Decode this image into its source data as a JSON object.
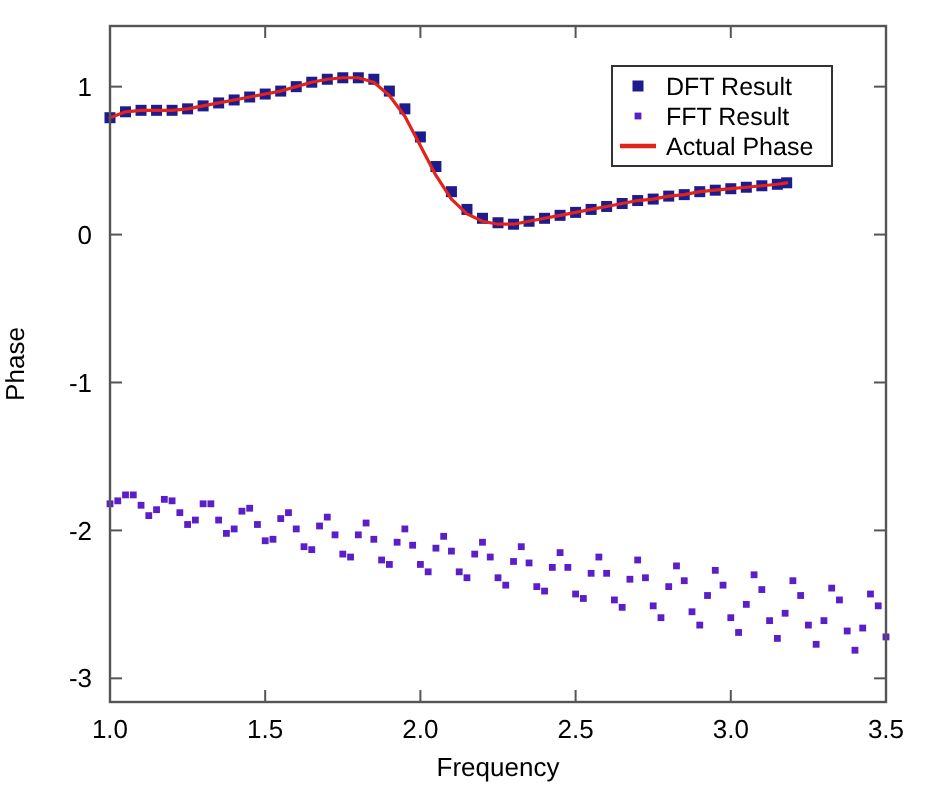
{
  "chart_data": {
    "type": "scatter",
    "xlabel": "Frequency",
    "ylabel": "Phase",
    "xlim": [
      1.0,
      3.5
    ],
    "ylim": [
      -3.16,
      1.41
    ],
    "xticks": [
      {
        "value": 1.0,
        "label": "1.0"
      },
      {
        "value": 1.5,
        "label": "1.5"
      },
      {
        "value": 2.0,
        "label": "2.0"
      },
      {
        "value": 2.5,
        "label": "2.5"
      },
      {
        "value": 3.0,
        "label": "3.0"
      },
      {
        "value": 3.5,
        "label": "3.5"
      }
    ],
    "yticks": [
      -3,
      -2,
      -1,
      0,
      1
    ],
    "grid": false,
    "legend": "top right",
    "marker": "square",
    "series": [
      {
        "name": "DFT Result",
        "color": "#1c1c8e",
        "x": [
          1.0,
          1.05,
          1.1,
          1.15,
          1.2,
          1.25,
          1.3,
          1.35,
          1.4,
          1.45,
          1.5,
          1.55,
          1.6,
          1.65,
          1.7,
          1.75,
          1.8,
          1.85,
          1.9,
          1.95,
          2.0,
          2.05,
          2.1,
          2.15,
          2.2,
          2.25,
          2.3,
          2.35,
          2.4,
          2.45,
          2.5,
          2.55,
          2.6,
          2.65,
          2.7,
          2.75,
          2.8,
          2.85,
          2.9,
          2.95,
          3.0,
          3.05,
          3.1,
          3.15,
          3.18
        ],
        "values": [
          0.79,
          0.83,
          0.84,
          0.84,
          0.84,
          0.85,
          0.87,
          0.89,
          0.91,
          0.93,
          0.95,
          0.97,
          1.0,
          1.03,
          1.05,
          1.06,
          1.06,
          1.05,
          0.97,
          0.85,
          0.66,
          0.46,
          0.29,
          0.17,
          0.11,
          0.08,
          0.07,
          0.09,
          0.11,
          0.13,
          0.15,
          0.17,
          0.19,
          0.21,
          0.23,
          0.24,
          0.26,
          0.27,
          0.29,
          0.3,
          0.31,
          0.32,
          0.33,
          0.34,
          0.35
        ]
      },
      {
        "name": "FFT Result",
        "color": "#5a1fc8",
        "x": [
          1.0,
          1.025,
          1.05,
          1.075,
          1.1,
          1.125,
          1.15,
          1.175,
          1.2,
          1.225,
          1.25,
          1.275,
          1.3,
          1.325,
          1.35,
          1.375,
          1.4,
          1.425,
          1.45,
          1.475,
          1.5,
          1.525,
          1.55,
          1.575,
          1.6,
          1.625,
          1.65,
          1.675,
          1.7,
          1.725,
          1.75,
          1.775,
          1.8,
          1.825,
          1.85,
          1.875,
          1.9,
          1.925,
          1.95,
          1.975,
          2.0,
          2.025,
          2.05,
          2.075,
          2.1,
          2.125,
          2.15,
          2.175,
          2.2,
          2.225,
          2.25,
          2.275,
          2.3,
          2.325,
          2.35,
          2.375,
          2.4,
          2.425,
          2.45,
          2.475,
          2.5,
          2.525,
          2.55,
          2.575,
          2.6,
          2.625,
          2.65,
          2.675,
          2.7,
          2.725,
          2.75,
          2.775,
          2.8,
          2.825,
          2.85,
          2.875,
          2.9,
          2.925,
          2.95,
          2.975,
          3.0,
          3.025,
          3.05,
          3.075,
          3.1,
          3.125,
          3.15,
          3.175,
          3.2,
          3.225,
          3.25,
          3.275,
          3.3,
          3.325,
          3.35,
          3.375,
          3.4,
          3.425,
          3.45,
          3.475,
          3.5
        ],
        "values": [
          -1.82,
          -1.8,
          -1.76,
          -1.76,
          -1.83,
          -1.9,
          -1.86,
          -1.79,
          -1.8,
          -1.88,
          -1.96,
          -1.93,
          -1.82,
          -1.82,
          -1.93,
          -2.02,
          -1.99,
          -1.87,
          -1.85,
          -1.96,
          -2.07,
          -2.06,
          -1.92,
          -1.88,
          -1.99,
          -2.11,
          -2.13,
          -1.97,
          -1.91,
          -2.03,
          -2.16,
          -2.18,
          -2.03,
          -1.95,
          -2.06,
          -2.2,
          -2.23,
          -2.08,
          -1.99,
          -2.1,
          -2.23,
          -2.28,
          -2.12,
          -2.04,
          -2.14,
          -2.28,
          -2.32,
          -2.16,
          -2.08,
          -2.18,
          -2.32,
          -2.37,
          -2.21,
          -2.11,
          -2.22,
          -2.38,
          -2.41,
          -2.25,
          -2.15,
          -2.25,
          -2.43,
          -2.46,
          -2.29,
          -2.18,
          -2.29,
          -2.47,
          -2.52,
          -2.33,
          -2.2,
          -2.32,
          -2.51,
          -2.59,
          -2.38,
          -2.24,
          -2.34,
          -2.55,
          -2.64,
          -2.44,
          -2.27,
          -2.37,
          -2.59,
          -2.69,
          -2.5,
          -2.3,
          -2.4,
          -2.61,
          -2.73,
          -2.56,
          -2.34,
          -2.44,
          -2.64,
          -2.77,
          -2.61,
          -2.39,
          -2.47,
          -2.68,
          -2.81,
          -2.66,
          -2.43,
          -2.51,
          -2.72
        ]
      },
      {
        "name": "Actual Phase",
        "type": "line",
        "marker": "none",
        "line_style": "solid",
        "color": "#e2231a",
        "x": [
          1.0,
          1.05,
          1.1,
          1.15,
          1.2,
          1.25,
          1.3,
          1.35,
          1.4,
          1.45,
          1.5,
          1.55,
          1.6,
          1.65,
          1.7,
          1.75,
          1.8,
          1.85,
          1.9,
          1.95,
          2.0,
          2.05,
          2.1,
          2.15,
          2.2,
          2.25,
          2.3,
          2.35,
          2.4,
          2.45,
          2.5,
          2.55,
          2.6,
          2.65,
          2.7,
          2.75,
          2.8,
          2.85,
          2.9,
          2.95,
          3.0,
          3.05,
          3.1,
          3.15,
          3.18
        ],
        "values": [
          0.79,
          0.83,
          0.84,
          0.84,
          0.84,
          0.85,
          0.87,
          0.89,
          0.91,
          0.93,
          0.95,
          0.97,
          1.0,
          1.03,
          1.05,
          1.06,
          1.06,
          1.03,
          0.94,
          0.8,
          0.6,
          0.4,
          0.24,
          0.14,
          0.09,
          0.07,
          0.07,
          0.09,
          0.11,
          0.13,
          0.15,
          0.17,
          0.19,
          0.21,
          0.23,
          0.24,
          0.26,
          0.27,
          0.29,
          0.3,
          0.31,
          0.32,
          0.33,
          0.34,
          0.35
        ]
      }
    ]
  }
}
